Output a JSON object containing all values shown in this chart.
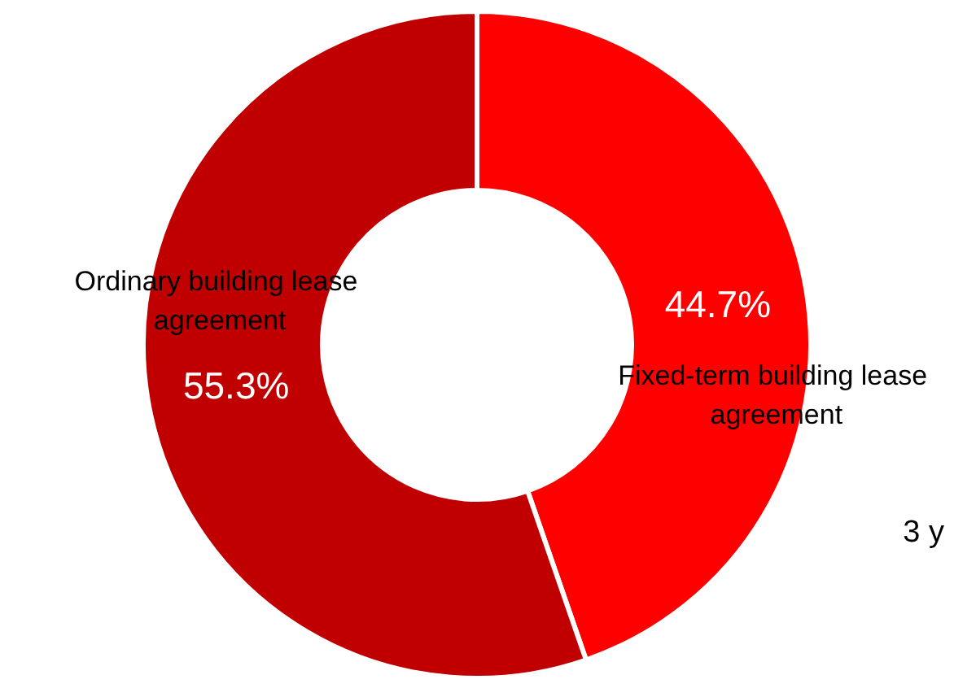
{
  "chart_data": {
    "type": "donut",
    "categories": [
      "Fixed-term building lease agreement",
      "Ordinary building lease agreement"
    ],
    "values": [
      44.7,
      55.3
    ],
    "colors": [
      "#ff0000",
      "#c00000"
    ],
    "value_labels": [
      "44.7%",
      "55.3%"
    ],
    "annotations": [
      "3 y"
    ]
  }
}
